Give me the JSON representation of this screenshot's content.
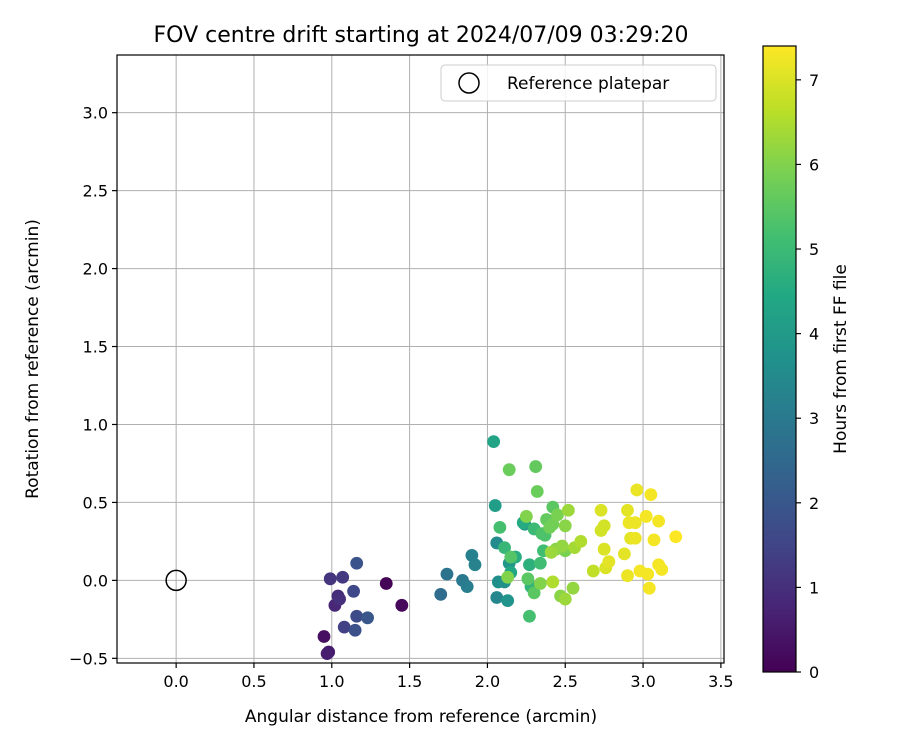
{
  "chart_data": {
    "type": "scatter",
    "title": "FOV centre drift starting at 2024/07/09 03:29:20",
    "xlabel": "Angular distance from reference (arcmin)",
    "ylabel": "Rotation from reference (arcmin)",
    "xlim": [
      -0.38,
      3.52
    ],
    "ylim": [
      -0.53,
      3.37
    ],
    "xticks": [
      0.0,
      0.5,
      1.0,
      1.5,
      2.0,
      2.5,
      3.0,
      3.5
    ],
    "xtick_labels": [
      "0.0",
      "0.5",
      "1.0",
      "1.5",
      "2.0",
      "2.5",
      "3.0",
      "3.5"
    ],
    "yticks": [
      -0.5,
      0.0,
      0.5,
      1.0,
      1.5,
      2.0,
      2.5,
      3.0
    ],
    "ytick_labels": [
      "−0.5",
      "0.0",
      "0.5",
      "1.0",
      "1.5",
      "2.0",
      "2.5",
      "3.0"
    ],
    "grid": true,
    "legend": {
      "placement": "top-right",
      "entries": [
        {
          "label": "Reference platepar",
          "marker": "open-circle",
          "x": 0.0,
          "y": 0.0
        }
      ]
    },
    "colorbar": {
      "label": "Hours from first FF file",
      "colormap": "viridis",
      "range": [
        0,
        7.4
      ],
      "ticks": [
        0,
        1,
        2,
        3,
        4,
        5,
        6,
        7
      ],
      "tick_labels": [
        "0",
        "1",
        "2",
        "3",
        "4",
        "5",
        "6",
        "7"
      ]
    },
    "series": [
      {
        "points": [
          [
            1.35,
            -0.02,
            0.05
          ],
          [
            1.45,
            -0.16,
            0.15
          ],
          [
            0.95,
            -0.36,
            0.3
          ],
          [
            0.98,
            -0.46,
            0.5
          ],
          [
            0.97,
            -0.47,
            0.6
          ],
          [
            1.02,
            -0.16,
            0.8
          ],
          [
            1.04,
            -0.1,
            0.9
          ],
          [
            1.05,
            -0.12,
            1.0
          ],
          [
            0.99,
            0.01,
            1.1
          ],
          [
            1.07,
            0.02,
            1.2
          ],
          [
            1.08,
            -0.3,
            1.4
          ],
          [
            1.14,
            -0.07,
            1.6
          ],
          [
            1.16,
            -0.23,
            1.7
          ],
          [
            1.15,
            -0.32,
            1.8
          ],
          [
            1.16,
            0.11,
            1.9
          ],
          [
            1.23,
            -0.24,
            2.0
          ],
          [
            1.7,
            -0.09,
            2.6
          ],
          [
            1.74,
            0.04,
            2.8
          ],
          [
            1.84,
            0.0,
            3.0
          ],
          [
            1.87,
            -0.04,
            3.1
          ],
          [
            1.9,
            0.16,
            3.2
          ],
          [
            1.92,
            0.1,
            3.3
          ],
          [
            2.06,
            -0.11,
            3.4
          ],
          [
            2.06,
            0.24,
            3.5
          ],
          [
            2.07,
            -0.01,
            3.6
          ],
          [
            2.11,
            -0.01,
            3.7
          ],
          [
            2.13,
            -0.13,
            3.8
          ],
          [
            2.14,
            0.11,
            3.9
          ],
          [
            2.24,
            0.36,
            4.0
          ],
          [
            2.05,
            0.48,
            4.1
          ],
          [
            2.04,
            0.89,
            4.3
          ],
          [
            2.15,
            0.05,
            4.4
          ],
          [
            2.23,
            0.37,
            4.5
          ],
          [
            2.18,
            0.15,
            4.6
          ],
          [
            2.27,
            0.1,
            4.7
          ],
          [
            2.28,
            -0.04,
            4.8
          ],
          [
            2.11,
            0.21,
            4.9
          ],
          [
            2.3,
            0.33,
            5.0
          ],
          [
            2.34,
            0.11,
            5.1
          ],
          [
            2.36,
            0.19,
            5.1
          ],
          [
            2.08,
            0.34,
            5.2
          ],
          [
            2.27,
            -0.23,
            5.2
          ],
          [
            2.35,
            0.3,
            5.3
          ],
          [
            2.37,
            0.29,
            5.3
          ],
          [
            2.15,
            0.15,
            5.4
          ],
          [
            2.26,
            0.01,
            5.5
          ],
          [
            2.3,
            -0.08,
            5.5
          ],
          [
            2.42,
            0.47,
            5.5
          ],
          [
            2.38,
            0.39,
            5.6
          ],
          [
            2.31,
            0.73,
            5.6
          ],
          [
            2.14,
            0.71,
            5.7
          ],
          [
            2.32,
            0.57,
            5.7
          ],
          [
            2.4,
            0.34,
            5.8
          ],
          [
            2.42,
            0.36,
            5.8
          ],
          [
            2.45,
            0.42,
            5.9
          ],
          [
            2.5,
            0.19,
            5.9
          ],
          [
            2.25,
            0.41,
            6.0
          ],
          [
            2.13,
            0.02,
            6.0
          ],
          [
            2.34,
            -0.02,
            6.0
          ],
          [
            2.47,
            -0.1,
            6.1
          ],
          [
            2.44,
            0.2,
            6.1
          ],
          [
            2.5,
            0.35,
            6.1
          ],
          [
            2.48,
            0.22,
            6.2
          ],
          [
            2.55,
            -0.05,
            6.2
          ],
          [
            2.52,
            0.45,
            6.3
          ],
          [
            2.41,
            0.18,
            6.3
          ],
          [
            2.5,
            -0.12,
            6.3
          ],
          [
            2.56,
            0.21,
            6.4
          ],
          [
            2.6,
            0.25,
            6.5
          ],
          [
            2.42,
            -0.01,
            6.5
          ],
          [
            2.68,
            0.06,
            6.7
          ],
          [
            2.73,
            0.32,
            6.9
          ],
          [
            2.75,
            0.35,
            6.9
          ],
          [
            2.76,
            0.08,
            7.0
          ],
          [
            2.73,
            0.45,
            7.0
          ],
          [
            2.75,
            0.2,
            7.0
          ],
          [
            2.78,
            0.12,
            7.1
          ],
          [
            2.88,
            0.17,
            7.1
          ],
          [
            2.9,
            0.45,
            7.1
          ],
          [
            2.92,
            0.27,
            7.1
          ],
          [
            2.9,
            0.03,
            7.2
          ],
          [
            2.91,
            0.37,
            7.2
          ],
          [
            2.95,
            0.37,
            7.2
          ],
          [
            2.96,
            0.58,
            7.2
          ],
          [
            2.95,
            0.27,
            7.2
          ],
          [
            2.98,
            0.06,
            7.3
          ],
          [
            3.02,
            0.41,
            7.3
          ],
          [
            3.03,
            0.04,
            7.3
          ],
          [
            3.05,
            0.55,
            7.3
          ],
          [
            3.04,
            -0.05,
            7.3
          ],
          [
            3.07,
            0.26,
            7.3
          ],
          [
            3.1,
            0.38,
            7.3
          ],
          [
            3.1,
            0.1,
            7.3
          ],
          [
            3.12,
            0.07,
            7.3
          ],
          [
            3.21,
            0.28,
            7.4
          ]
        ]
      }
    ]
  }
}
